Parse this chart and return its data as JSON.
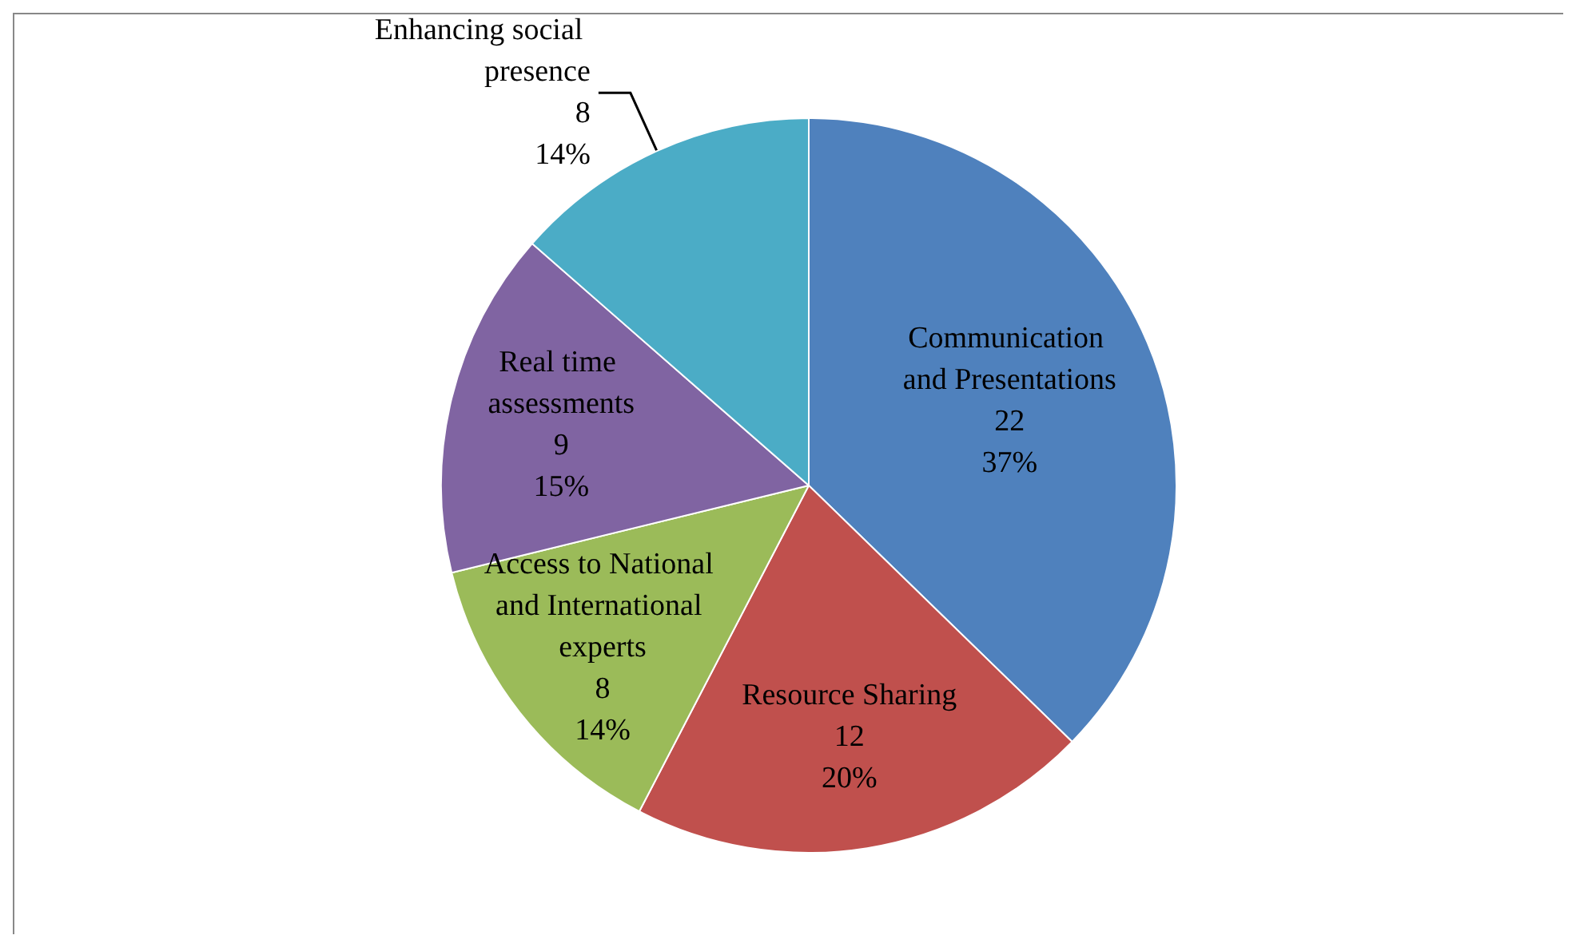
{
  "chart_data": {
    "type": "pie",
    "categories": [
      "Communication and Presentations",
      "Resource Sharing",
      "Access to National and International experts",
      "Real time assessments",
      "Enhancing social presence"
    ],
    "values": [
      22,
      12,
      8,
      9,
      8
    ],
    "colors": [
      "#4f81bd",
      "#c0504d",
      "#9bbb59",
      "#8064a2",
      "#4bacc6"
    ],
    "value_labels": [
      "22\n37%",
      "12\n20%",
      "8\n14%",
      "9\n15%",
      "8\n14%"
    ],
    "legend": false
  }
}
